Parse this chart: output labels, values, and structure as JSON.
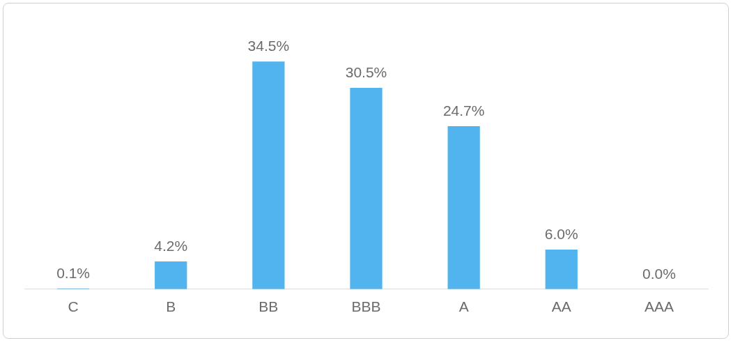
{
  "chart_data": {
    "type": "bar",
    "categories": [
      "C",
      "B",
      "BB",
      "BBB",
      "A",
      "AA",
      "AAA"
    ],
    "values": [
      0.1,
      4.2,
      34.5,
      30.5,
      24.7,
      6.0,
      0.0
    ],
    "value_labels": [
      "0.1%",
      "4.2%",
      "34.5%",
      "30.5%",
      "24.7%",
      "6.0%",
      "0.0%"
    ],
    "color": "#52b4ee",
    "grid": false,
    "legend": false,
    "tick_labels": "x"
  }
}
